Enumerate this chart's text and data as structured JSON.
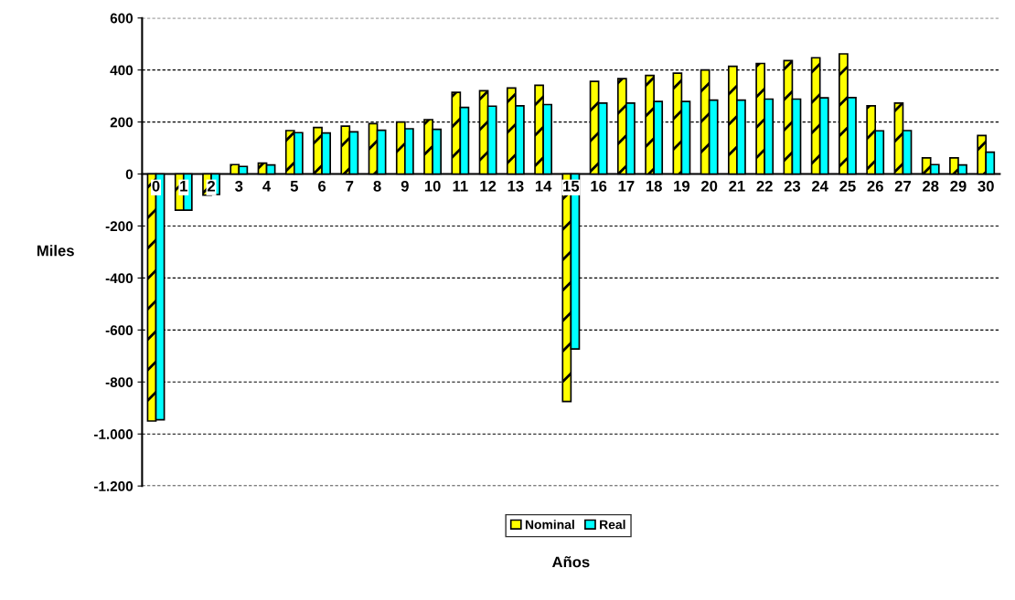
{
  "chart_data": {
    "type": "bar",
    "xlabel": "Años",
    "ylabel": "Miles",
    "categories": [
      "0",
      "1",
      "2",
      "3",
      "4",
      "5",
      "6",
      "7",
      "8",
      "9",
      "10",
      "11",
      "12",
      "13",
      "14",
      "15",
      "16",
      "17",
      "18",
      "19",
      "20",
      "21",
      "22",
      "23",
      "24",
      "25",
      "26",
      "27",
      "28",
      "29",
      "30"
    ],
    "series": [
      {
        "name": "Nominal",
        "color": "#ffff00",
        "values": [
          -950,
          -139,
          -81,
          36,
          42,
          167,
          179,
          184,
          194,
          200,
          209,
          314,
          320,
          331,
          341,
          -875,
          356,
          367,
          379,
          388,
          400,
          414,
          425,
          436,
          447,
          462,
          262,
          273,
          62,
          62,
          148
        ]
      },
      {
        "name": "Real",
        "color": "#00ffff",
        "values": [
          -945,
          -139,
          -79,
          29,
          35,
          159,
          158,
          162,
          168,
          174,
          172,
          256,
          261,
          262,
          267,
          -673,
          273,
          273,
          279,
          279,
          284,
          284,
          288,
          288,
          293,
          294,
          166,
          167,
          36,
          35,
          84
        ]
      }
    ],
    "ylim": [
      -1200,
      600
    ],
    "yticks": [
      {
        "value": -1200,
        "label": "-1.200"
      },
      {
        "value": -1000,
        "label": "-1.000"
      },
      -800,
      -600,
      -400,
      -200,
      0,
      200,
      400,
      600
    ],
    "grid": "y",
    "legend": "bottom"
  }
}
